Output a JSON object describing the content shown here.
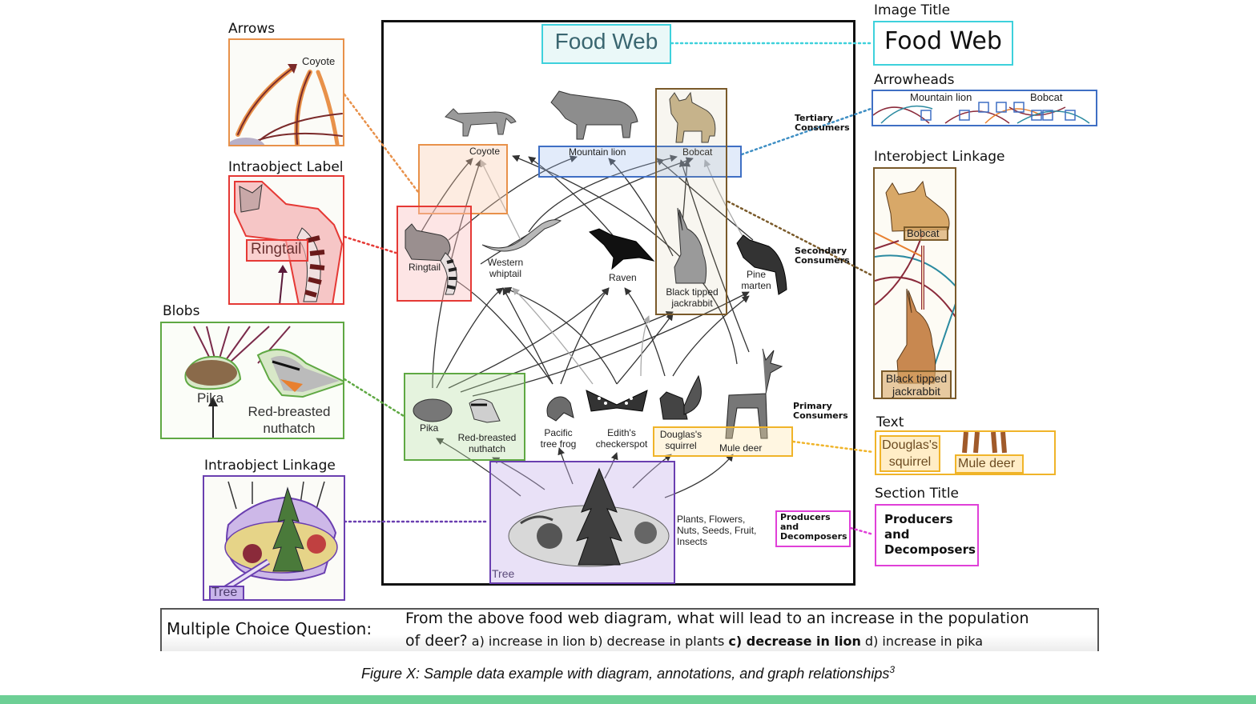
{
  "main_diagram": {
    "title": "Food Web",
    "section_labels": {
      "tertiary": "Tertiary Consumers",
      "secondary": "Secondary Consumers",
      "primary": "Primary Consumers",
      "producers": "Producers and Decomposers"
    },
    "organisms": {
      "coyote": "Coyote",
      "mountain_lion": "Mountain lion",
      "bobcat": "Bobcat",
      "ringtail": "Ringtail",
      "western_whiptail": "Western whiptail",
      "raven": "Raven",
      "jackrabbit": "Black tipped jackrabbit",
      "pine_marten": "Pine marten",
      "pika": "Pika",
      "nuthatch": "Red-breasted nuthatch",
      "tree_frog": "Pacific tree frog",
      "checkerspot": "Edith's checkerspot",
      "squirrel": "Douglas's squirrel",
      "mule_deer": "Mule deer",
      "plants": "Plants, Flowers, Nuts, Seeds, Fruit, Insects",
      "tree": "Tree"
    }
  },
  "annotations": {
    "arrows": {
      "heading": "Arrows",
      "sample_text": "Coyote",
      "color": "#e8914a"
    },
    "intraobject_label": {
      "heading": "Intraobject Label",
      "sample_text": "Ringtail",
      "color": "#e53935"
    },
    "blobs": {
      "heading": "Blobs",
      "pika": "Pika",
      "nuthatch": "Red-breasted nuthatch",
      "color": "#5fa843"
    },
    "intraobject_linkage": {
      "heading": "Intraobject Linkage",
      "sample_text": "Tree",
      "color": "#6a3fb0"
    },
    "image_title": {
      "heading": "Image Title",
      "sample_text": "Food Web",
      "color": "#3ed1dc"
    },
    "arrowheads": {
      "heading": "Arrowheads",
      "lion": "Mountain lion",
      "bobcat": "Bobcat",
      "color": "#3f6fc4"
    },
    "interobject_linkage": {
      "heading": "Interobject Linkage",
      "bobcat": "Bobcat",
      "jackrabbit": "Black tipped jackrabbit",
      "color": "#7a5a2a"
    },
    "text": {
      "heading": "Text",
      "squirrel": "Douglas's squirrel",
      "deer": "Mule deer",
      "color": "#f0b429"
    },
    "section_title": {
      "heading": "Section Title",
      "sample_text": "Producers and Decomposers",
      "color": "#e040d8"
    }
  },
  "question": {
    "label": "Multiple Choice Question:",
    "line1": "From the above food web diagram, what will lead to an increase in the population",
    "line2_start": "of deer?",
    "option_a": "a) increase in lion",
    "option_b": "b) decrease in plants",
    "option_c": "c) decrease in lion",
    "option_d": "d) increase in pika"
  },
  "caption": {
    "text": "Figure X: Sample data example with diagram, annotations, and graph relationships",
    "superscript": "3"
  }
}
